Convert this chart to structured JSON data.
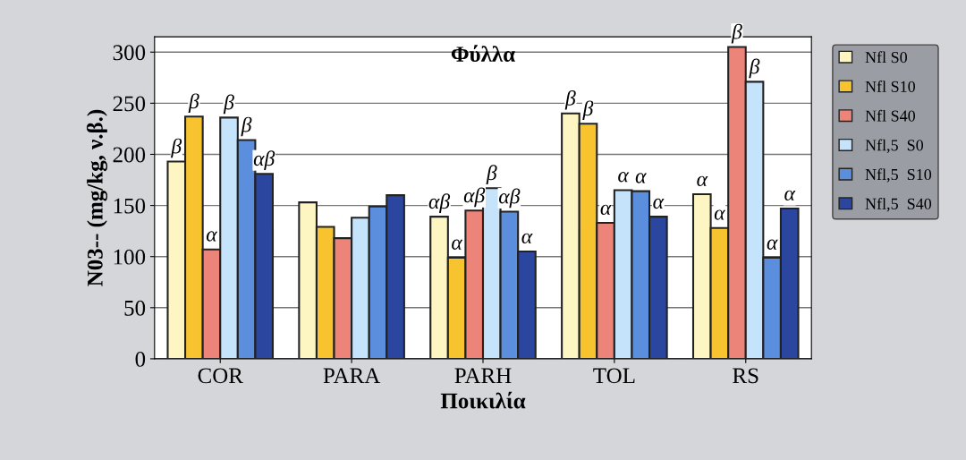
{
  "chart_data": {
    "type": "bar",
    "title": "Φύλλα",
    "xlabel": "Ποικιλία",
    "ylabel": "N03-- (mg/kg, ν.β.)",
    "categories": [
      "COR",
      "PARA",
      "PARH",
      "TOL",
      "RS"
    ],
    "series": [
      {
        "name": "Nfl S0",
        "color": "#fdf6c3",
        "values": [
          193,
          153,
          139,
          240,
          161
        ],
        "value_labels": [
          "β",
          null,
          "αβ",
          "β",
          "α"
        ]
      },
      {
        "name": "Nfl S10",
        "color": "#f7c42f",
        "values": [
          237,
          129,
          99,
          230,
          128
        ],
        "value_labels": [
          "β",
          null,
          "α",
          "β",
          "α"
        ]
      },
      {
        "name": "Nfl S40",
        "color": "#ec847a",
        "values": [
          107,
          118,
          145,
          133,
          305
        ],
        "value_labels": [
          "α",
          null,
          "αβ",
          "α",
          "β"
        ]
      },
      {
        "name": "Nfl,5  S0",
        "color": "#c5e3fa",
        "values": [
          236,
          138,
          167,
          165,
          271
        ],
        "value_labels": [
          "β",
          null,
          "β",
          "α",
          "β"
        ]
      },
      {
        "name": "Nfl,5  S10",
        "color": "#5b8fde",
        "values": [
          214,
          149,
          144,
          164,
          99
        ],
        "value_labels": [
          "β",
          null,
          "αβ",
          "α",
          "α"
        ]
      },
      {
        "name": "Nfl,5  S40",
        "color": "#2a469e",
        "values": [
          181,
          160,
          105,
          139,
          147
        ],
        "value_labels": [
          "αβ",
          null,
          "α",
          "α",
          "α"
        ]
      }
    ],
    "ylim": [
      0,
      315
    ],
    "yticks": [
      0,
      50,
      100,
      150,
      200,
      250,
      300
    ],
    "grid": "y",
    "legend": "right"
  }
}
